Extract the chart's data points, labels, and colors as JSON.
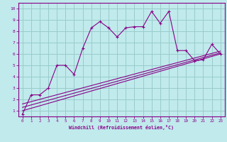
{
  "xlabel": "Windchill (Refroidissement éolien,°C)",
  "xlim": [
    -0.5,
    23.5
  ],
  "ylim": [
    0.5,
    10.5
  ],
  "xticks": [
    0,
    1,
    2,
    3,
    4,
    5,
    6,
    7,
    8,
    9,
    10,
    11,
    12,
    13,
    14,
    15,
    16,
    17,
    18,
    19,
    20,
    21,
    22,
    23
  ],
  "yticks": [
    1,
    2,
    3,
    4,
    5,
    6,
    7,
    8,
    9,
    10
  ],
  "bg_color": "#c0eaec",
  "grid_color": "#99cccc",
  "line_color": "#880088",
  "jagged_x": [
    0,
    1,
    2,
    3,
    4,
    5,
    6,
    7,
    8,
    9,
    10,
    11,
    12,
    13,
    14,
    15,
    16,
    17,
    18,
    19,
    20,
    21,
    22,
    23
  ],
  "jagged_y": [
    0.7,
    2.4,
    2.4,
    3.0,
    5.0,
    5.0,
    4.2,
    6.5,
    8.3,
    8.85,
    8.3,
    7.5,
    8.3,
    8.4,
    8.4,
    9.75,
    8.7,
    9.75,
    6.3,
    6.3,
    5.4,
    5.5,
    6.85,
    6.0
  ],
  "linear_lines": [
    {
      "x": [
        0,
        23
      ],
      "y": [
        1.0,
        6.0
      ]
    },
    {
      "x": [
        0,
        23
      ],
      "y": [
        1.3,
        6.1
      ]
    },
    {
      "x": [
        0,
        23
      ],
      "y": [
        1.6,
        6.25
      ]
    }
  ]
}
